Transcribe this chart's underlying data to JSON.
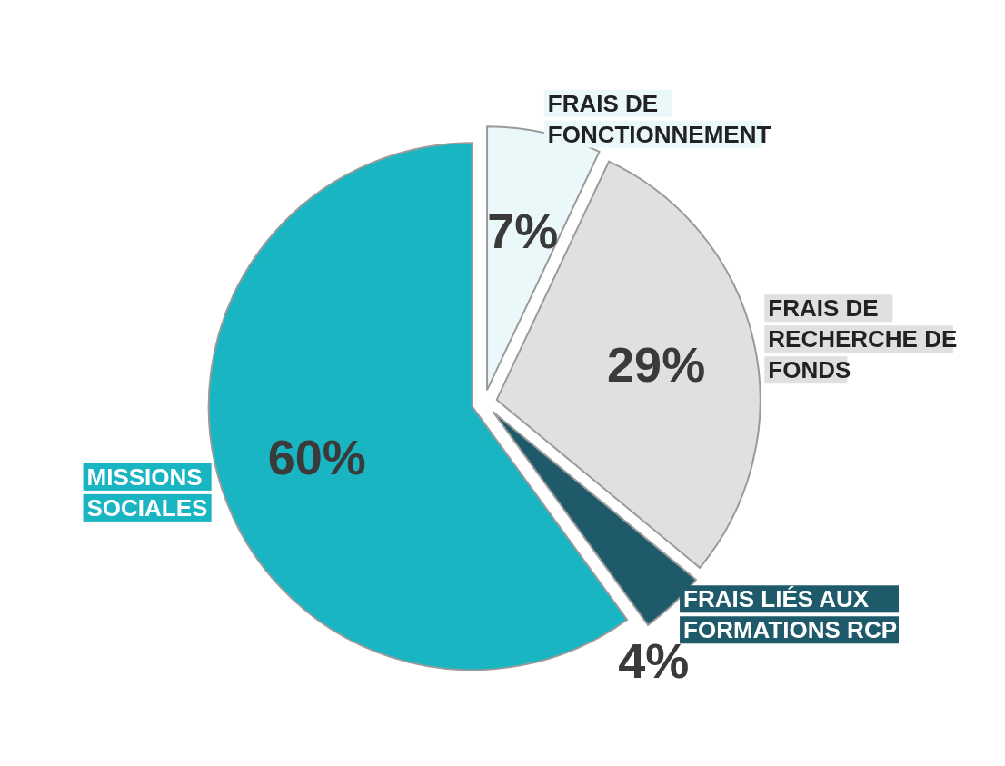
{
  "chart_data": {
    "type": "pie",
    "categories": [
      "FRAIS DE FONCTIONNEMENT",
      "FRAIS DE RECHERCHE DE FONDS",
      "FRAIS LIÉS AUX FORMATIONS RCP",
      "MISSIONS SOCIALES"
    ],
    "values": [
      7,
      29,
      4,
      60
    ],
    "colors": [
      "#eaf8fa",
      "#e0e0e0",
      "#1f5a6a",
      "#19b5c3"
    ],
    "value_labels": [
      "7%",
      "29%",
      "4%",
      "60%"
    ],
    "legend": false
  }
}
